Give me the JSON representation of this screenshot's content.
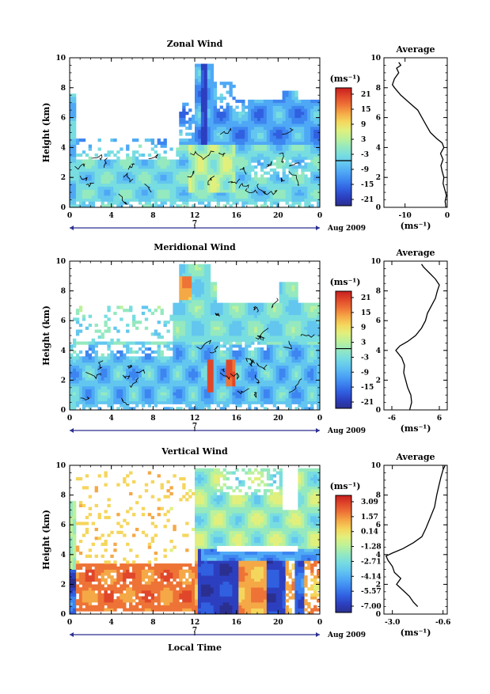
{
  "figure": {
    "xlabel": "Local Time",
    "date_label": "Aug 2009",
    "day_label": "7",
    "average_title": "Average"
  },
  "colors": [
    "#2b2f8f",
    "#2c3fbf",
    "#3060e0",
    "#3d85f0",
    "#4fa8f5",
    "#63c6ef",
    "#78dde0",
    "#95e9bf",
    "#bdf19a",
    "#e1f07c",
    "#f5d65c",
    "#f5a846",
    "#ee7336",
    "#e0472a",
    "#c81e1e"
  ],
  "chart_data": [
    {
      "type": "heatmap",
      "title": "Zonal Wind",
      "ylabel": "Height (km)",
      "x_ticks": [
        "0",
        "4",
        "8",
        "12",
        "16",
        "20",
        "0"
      ],
      "y_ticks": [
        "0",
        "2",
        "4",
        "6",
        "8",
        "10"
      ],
      "xlim": [
        0,
        24
      ],
      "ylim": [
        0,
        10
      ],
      "unit_label": "(ms⁻¹)",
      "colorbar_ticks": [
        "21",
        "15",
        "9",
        "3",
        "-3",
        "-9",
        "-15",
        "-21"
      ],
      "colorbar_range": [
        -24,
        24
      ],
      "colorbar_contour_at": "-3",
      "profile": {
        "title": "Average",
        "x_ticks": [
          "-10",
          "0"
        ],
        "xlim": [
          -15,
          0
        ],
        "xlabel": "(ms⁻¹)",
        "y_ticks": [
          "0",
          "2",
          "4",
          "6",
          "8",
          "10"
        ],
        "ylim": [
          0,
          10
        ],
        "points": [
          [
            -0.3,
            0
          ],
          [
            -0.5,
            0.4
          ],
          [
            -0.2,
            0.8
          ],
          [
            -0.6,
            1.2
          ],
          [
            -1.0,
            1.6
          ],
          [
            -0.8,
            2.0
          ],
          [
            -1.2,
            2.4
          ],
          [
            -1.5,
            2.8
          ],
          [
            -1.0,
            3.2
          ],
          [
            -1.6,
            3.6
          ],
          [
            -0.8,
            4.0
          ],
          [
            -1.2,
            4.3
          ],
          [
            -2.5,
            4.6
          ],
          [
            -4.0,
            5.0
          ],
          [
            -5.0,
            5.5
          ],
          [
            -6.0,
            6.0
          ],
          [
            -7.0,
            6.5
          ],
          [
            -9.0,
            7.0
          ],
          [
            -11.0,
            7.5
          ],
          [
            -12.5,
            8.0
          ],
          [
            -13.0,
            8.2
          ],
          [
            -12.5,
            8.6
          ],
          [
            -11.5,
            9.0
          ],
          [
            -12.0,
            9.3
          ],
          [
            -11.0,
            9.5
          ],
          [
            -11.5,
            9.7
          ]
        ]
      }
    },
    {
      "type": "heatmap",
      "title": "Meridional Wind",
      "ylabel": "Height (km)",
      "x_ticks": [
        "0",
        "4",
        "8",
        "12",
        "16",
        "20",
        "0"
      ],
      "y_ticks": [
        "0",
        "2",
        "4",
        "6",
        "8",
        "10"
      ],
      "xlim": [
        0,
        24
      ],
      "ylim": [
        0,
        10
      ],
      "unit_label": "(ms⁻¹)",
      "colorbar_ticks": [
        "21",
        "15",
        "9",
        "3",
        "-3",
        "-9",
        "-15",
        "-21"
      ],
      "colorbar_range": [
        -24,
        24
      ],
      "colorbar_contour_at": "3",
      "profile": {
        "title": "Average",
        "x_ticks": [
          "-6",
          "6"
        ],
        "xlim": [
          -8,
          8
        ],
        "xlabel": "(ms⁻¹)",
        "y_ticks": [
          "0",
          "2",
          "4",
          "6",
          "8",
          "10"
        ],
        "ylim": [
          0,
          10
        ],
        "points": [
          [
            -1.5,
            0
          ],
          [
            -1.0,
            0.5
          ],
          [
            -1.2,
            1.0
          ],
          [
            -2.0,
            1.5
          ],
          [
            -2.5,
            2.0
          ],
          [
            -3.0,
            2.5
          ],
          [
            -2.8,
            3.0
          ],
          [
            -3.5,
            3.5
          ],
          [
            -5.0,
            4.0
          ],
          [
            -4.0,
            4.3
          ],
          [
            -2.0,
            4.6
          ],
          [
            0.0,
            5.0
          ],
          [
            1.5,
            5.5
          ],
          [
            2.5,
            6.0
          ],
          [
            3.0,
            6.5
          ],
          [
            4.0,
            7.0
          ],
          [
            5.0,
            7.5
          ],
          [
            5.5,
            8.0
          ],
          [
            6.0,
            8.4
          ],
          [
            5.0,
            8.8
          ],
          [
            3.5,
            9.2
          ],
          [
            2.0,
            9.6
          ],
          [
            1.5,
            9.8
          ]
        ]
      }
    },
    {
      "type": "heatmap",
      "title": "Vertical Wind",
      "ylabel": "Height (km)",
      "x_ticks": [
        "0",
        "4",
        "8",
        "12",
        "16",
        "20",
        "0"
      ],
      "y_ticks": [
        "0",
        "2",
        "4",
        "6",
        "8",
        "10"
      ],
      "xlim": [
        0,
        24
      ],
      "ylim": [
        0,
        10
      ],
      "unit_label": "(ms⁻¹)",
      "colorbar_ticks": [
        "3.09",
        "1.57",
        "0.14",
        "-1.28",
        "-2.71",
        "-4.14",
        "-5.57",
        "-7.00"
      ],
      "colorbar_range": [
        -7.7,
        3.8
      ],
      "colorbar_contour_at": "",
      "profile": {
        "title": "Average",
        "x_ticks": [
          "-3.0",
          "-0.6"
        ],
        "xlim": [
          -3.4,
          -0.4
        ],
        "xlabel": "(ms⁻¹)",
        "y_ticks": [
          "0",
          "2",
          "4",
          "6",
          "8",
          "10"
        ],
        "ylim": [
          0,
          10
        ],
        "points": [
          [
            -1.8,
            0.5
          ],
          [
            -2.0,
            0.8
          ],
          [
            -2.2,
            1.2
          ],
          [
            -2.5,
            1.6
          ],
          [
            -2.8,
            2.0
          ],
          [
            -2.6,
            2.4
          ],
          [
            -2.9,
            2.8
          ],
          [
            -3.0,
            3.2
          ],
          [
            -3.2,
            3.6
          ],
          [
            -3.3,
            3.9
          ],
          [
            -3.0,
            4.1
          ],
          [
            -2.5,
            4.4
          ],
          [
            -2.0,
            4.8
          ],
          [
            -1.6,
            5.2
          ],
          [
            -1.4,
            5.8
          ],
          [
            -1.2,
            6.5
          ],
          [
            -1.0,
            7.2
          ],
          [
            -0.9,
            8.0
          ],
          [
            -0.8,
            8.6
          ],
          [
            -0.7,
            9.2
          ],
          [
            -0.6,
            9.7
          ],
          [
            -0.5,
            10.0
          ]
        ]
      }
    }
  ]
}
